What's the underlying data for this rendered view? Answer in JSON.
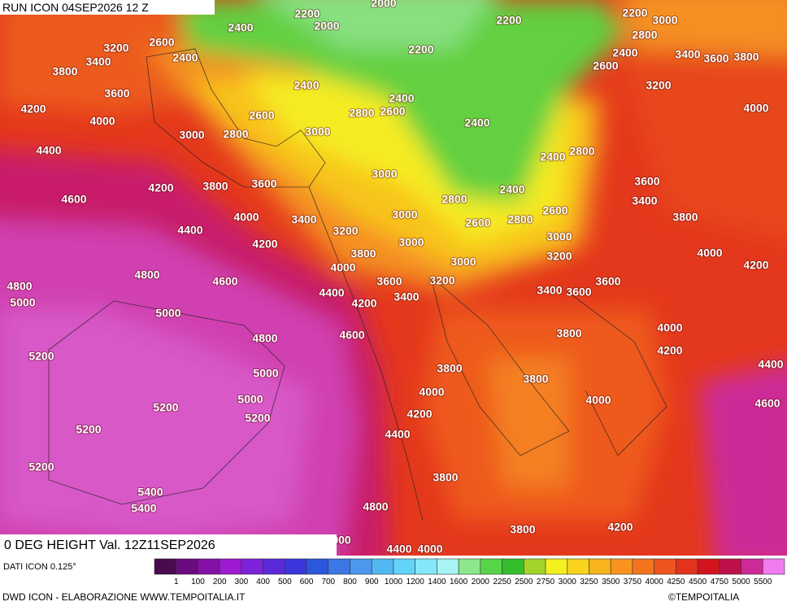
{
  "header": {
    "run": "RUN ICON 04SEP2026 12 Z",
    "field": "0 DEG HEIGHT Val. 12Z11SEP2026"
  },
  "legend": {
    "source": "DATI ICON 0.125°",
    "colors": [
      "#4a0a4e",
      "#6a0c80",
      "#8410a8",
      "#9c1ad0",
      "#7d22d8",
      "#5a28d8",
      "#3a36dc",
      "#2a58dc",
      "#3c78e4",
      "#4c98ec",
      "#52b8f2",
      "#62d4f8",
      "#84e8f8",
      "#a8f4f4",
      "#8ce88c",
      "#58d448",
      "#34be2c",
      "#a4d42c",
      "#f4f020",
      "#f8d41e",
      "#f8b41e",
      "#f8941e",
      "#f4741e",
      "#ee541e",
      "#e2341c",
      "#d2141e",
      "#c0104a",
      "#cc2a96",
      "#f07cf0"
    ],
    "ticks": [
      "1",
      "100",
      "200",
      "300",
      "400",
      "500",
      "600",
      "700",
      "800",
      "900",
      "1000",
      "1200",
      "1400",
      "1600",
      "2000",
      "2250",
      "2500",
      "2750",
      "3000",
      "3250",
      "3500",
      "3750",
      "4000",
      "4250",
      "4500",
      "4750",
      "5000",
      "5500"
    ]
  },
  "footer": {
    "credit": "DWD ICON - ELABORAZIONE WWW.TEMPOITALIA.IT",
    "brand": "©TEMPOITALIA"
  },
  "map": {
    "contour_labels": [
      "2000",
      "2200",
      "2400",
      "2000",
      "2600",
      "3200",
      "2400",
      "3400",
      "3800",
      "2200",
      "2200",
      "2200",
      "3000",
      "2800",
      "2400",
      "3400",
      "3600",
      "3800",
      "2600",
      "3200",
      "3600",
      "2400",
      "2400",
      "4200",
      "4000",
      "2600",
      "2800",
      "2600",
      "4000",
      "2400",
      "3000",
      "2800",
      "3000",
      "4400",
      "2800",
      "2400",
      "3000",
      "4200",
      "3800",
      "3600",
      "3600",
      "4600",
      "2400",
      "2800",
      "3400",
      "3000",
      "4000",
      "3400",
      "2600",
      "2600",
      "2800",
      "3800",
      "4400",
      "3200",
      "3000",
      "4200",
      "3000",
      "3800",
      "3200",
      "4000",
      "3000",
      "4200",
      "4000",
      "4800",
      "4600",
      "3600",
      "3200",
      "3600",
      "3400",
      "3600",
      "4800",
      "4400",
      "3400",
      "5000",
      "4200",
      "5000",
      "3800",
      "4000",
      "4800",
      "4600",
      "5200",
      "4200",
      "3800",
      "4400",
      "5000",
      "3800",
      "4000",
      "5000",
      "4000",
      "4600",
      "5200",
      "4200",
      "5200",
      "5200",
      "4400",
      "5200",
      "3800",
      "5400",
      "4800",
      "5400",
      "3800",
      "4200",
      "000",
      "4400",
      "4000"
    ]
  }
}
